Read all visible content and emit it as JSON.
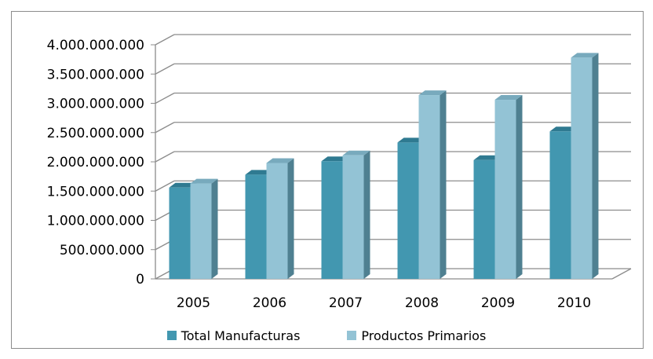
{
  "chart_data": {
    "type": "bar",
    "categories": [
      "2005",
      "2006",
      "2007",
      "2008",
      "2009",
      "2010"
    ],
    "series": [
      {
        "name": "Total Manufacturas",
        "values": [
          1560000000,
          1780000000,
          2010000000,
          2330000000,
          2030000000,
          2520000000
        ]
      },
      {
        "name": "Productos Primarios",
        "values": [
          1630000000,
          1980000000,
          2110000000,
          3140000000,
          3060000000,
          3780000000
        ]
      }
    ],
    "ylim": [
      0,
      4000000000
    ],
    "yticks": [
      "0",
      "500.000.000",
      "1.000.000.000",
      "1.500.000.000",
      "2.000.000.000",
      "2.500.000.000",
      "3.000.000.000",
      "3.500.000.000",
      "4.000.000.000"
    ],
    "grid": true,
    "legend_position": "bottom",
    "colors": {
      "Total Manufacturas": {
        "front": "#4297b0",
        "side": "#2a6a7e",
        "top": "#2f7a91"
      },
      "Productos Primarios": {
        "front": "#93c3d5",
        "side": "#4f8091",
        "top": "#78aabd"
      }
    }
  }
}
